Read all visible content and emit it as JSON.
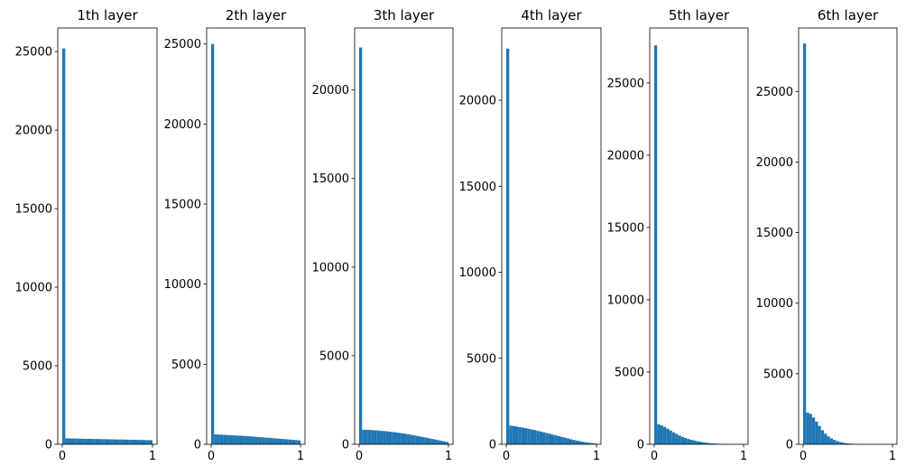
{
  "chart_data": [
    {
      "type": "bar",
      "title": "1th layer",
      "xlim": [
        -0.05,
        1.05
      ],
      "ylim": [
        0,
        26500
      ],
      "yticks": [
        0,
        5000,
        10000,
        15000,
        20000,
        25000
      ],
      "xticks": [
        0,
        1
      ],
      "bins": 30,
      "values": [
        25200,
        380,
        375,
        370,
        365,
        360,
        355,
        350,
        348,
        345,
        340,
        336,
        332,
        328,
        324,
        320,
        316,
        312,
        308,
        304,
        300,
        296,
        292,
        288,
        284,
        280,
        276,
        272,
        268,
        264
      ]
    },
    {
      "type": "bar",
      "title": "2th layer",
      "xlim": [
        -0.05,
        1.05
      ],
      "ylim": [
        0,
        26000
      ],
      "yticks": [
        0,
        5000,
        10000,
        15000,
        20000,
        25000
      ],
      "xticks": [
        0,
        1
      ],
      "bins": 30,
      "values": [
        25000,
        620,
        610,
        600,
        590,
        580,
        570,
        560,
        550,
        540,
        530,
        520,
        505,
        490,
        475,
        460,
        445,
        430,
        415,
        400,
        385,
        370,
        355,
        340,
        325,
        310,
        295,
        280,
        265,
        250
      ]
    },
    {
      "type": "bar",
      "title": "3th layer",
      "xlim": [
        -0.05,
        1.05
      ],
      "ylim": [
        0,
        23500
      ],
      "yticks": [
        0,
        5000,
        10000,
        15000,
        20000
      ],
      "xticks": [
        0,
        1
      ],
      "bins": 30,
      "values": [
        22400,
        820,
        815,
        810,
        800,
        790,
        775,
        760,
        745,
        730,
        710,
        690,
        670,
        645,
        620,
        595,
        565,
        535,
        505,
        475,
        445,
        410,
        375,
        340,
        305,
        270,
        235,
        200,
        165,
        130
      ]
    },
    {
      "type": "bar",
      "title": "4th layer",
      "xlim": [
        -0.05,
        1.05
      ],
      "ylim": [
        0,
        24200
      ],
      "yticks": [
        0,
        5000,
        10000,
        15000,
        20000
      ],
      "xticks": [
        0,
        1
      ],
      "bins": 30,
      "values": [
        23000,
        1080,
        1060,
        1030,
        1000,
        970,
        935,
        900,
        860,
        820,
        780,
        740,
        700,
        655,
        610,
        565,
        520,
        475,
        430,
        385,
        340,
        295,
        255,
        215,
        180,
        145,
        115,
        90,
        70,
        50
      ]
    },
    {
      "type": "bar",
      "title": "5th layer",
      "xlim": [
        -0.05,
        1.05
      ],
      "ylim": [
        0,
        28800
      ],
      "yticks": [
        0,
        5000,
        10000,
        15000,
        20000,
        25000
      ],
      "xticks": [
        0,
        1
      ],
      "bins": 30,
      "values": [
        27600,
        1380,
        1300,
        1200,
        1080,
        950,
        830,
        720,
        610,
        520,
        440,
        370,
        310,
        260,
        215,
        175,
        140,
        110,
        85,
        65,
        50,
        38,
        28,
        20,
        14,
        10,
        7,
        5,
        3,
        2
      ]
    },
    {
      "type": "bar",
      "title": "6th layer",
      "xlim": [
        -0.05,
        1.05
      ],
      "ylim": [
        0,
        29500
      ],
      "yticks": [
        0,
        5000,
        10000,
        15000,
        20000,
        25000
      ],
      "xticks": [
        0,
        1
      ],
      "bins": 30,
      "values": [
        28400,
        2250,
        2150,
        1900,
        1600,
        1300,
        1000,
        750,
        560,
        420,
        310,
        225,
        160,
        115,
        80,
        55,
        38,
        26,
        18,
        12,
        8,
        5,
        3,
        2,
        1,
        1,
        0,
        0,
        0,
        0
      ]
    }
  ]
}
